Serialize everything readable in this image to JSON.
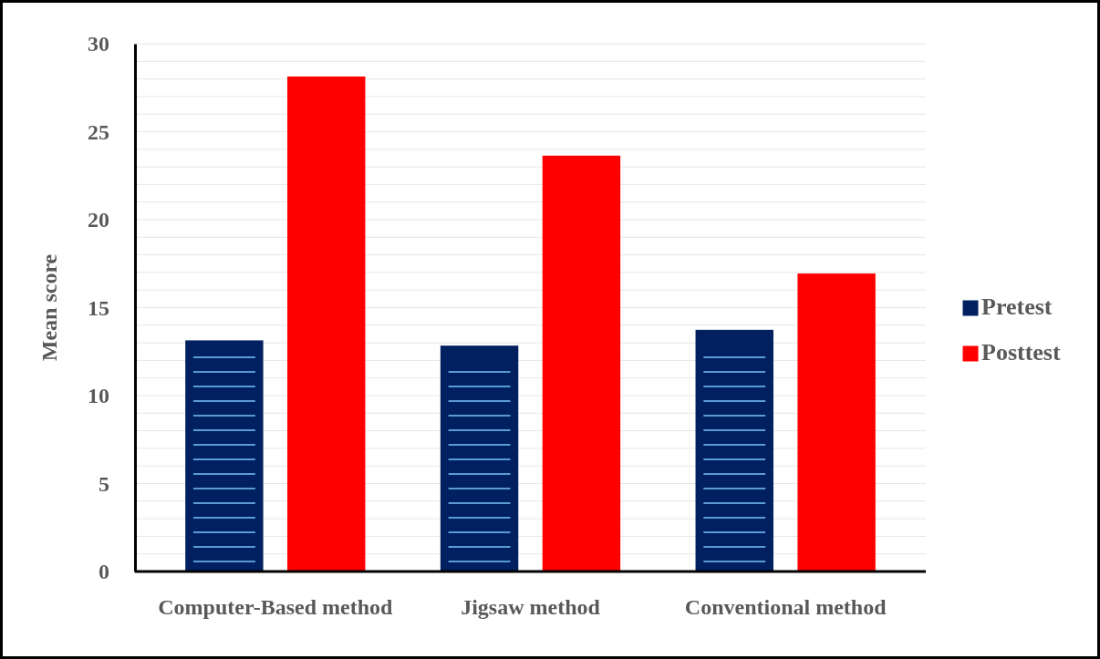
{
  "chart_data": {
    "type": "bar",
    "ylabel": "Mean score",
    "categories": [
      "Computer-Based method",
      "Jigsaw method",
      "Conventional method"
    ],
    "series": [
      {
        "name": "Pretest",
        "color": "#002060",
        "values": [
          13.1,
          12.8,
          13.7
        ]
      },
      {
        "name": "Posttest",
        "color": "#ff0000",
        "values": [
          28.1,
          23.6,
          16.9
        ]
      }
    ],
    "ylim": [
      0,
      30
    ],
    "yticks": [
      0,
      {
        "value": 1,
        "label": null
      },
      {
        "value": 2,
        "label": null
      },
      {
        "value": 3,
        "label": null
      },
      {
        "value": 4,
        "label": null
      },
      5,
      {
        "value": 6,
        "label": null
      },
      {
        "value": 7,
        "label": null
      },
      {
        "value": 8,
        "label": null
      },
      {
        "value": 9,
        "label": null
      },
      10,
      {
        "value": 11,
        "label": null
      },
      {
        "value": 12,
        "label": null
      },
      {
        "value": 13,
        "label": null
      },
      {
        "value": 14,
        "label": null
      },
      15,
      {
        "value": 16,
        "label": null
      },
      {
        "value": 17,
        "label": null
      },
      {
        "value": 18,
        "label": null
      },
      {
        "value": 19,
        "label": null
      },
      20,
      {
        "value": 21,
        "label": null
      },
      {
        "value": 22,
        "label": null
      },
      {
        "value": 23,
        "label": null
      },
      {
        "value": 24,
        "label": null
      },
      25,
      {
        "value": 26,
        "label": null
      },
      {
        "value": 27,
        "label": null
      },
      {
        "value": 28,
        "label": null
      },
      {
        "value": 29,
        "label": null
      },
      30
    ],
    "grid": true,
    "legend": "right"
  }
}
